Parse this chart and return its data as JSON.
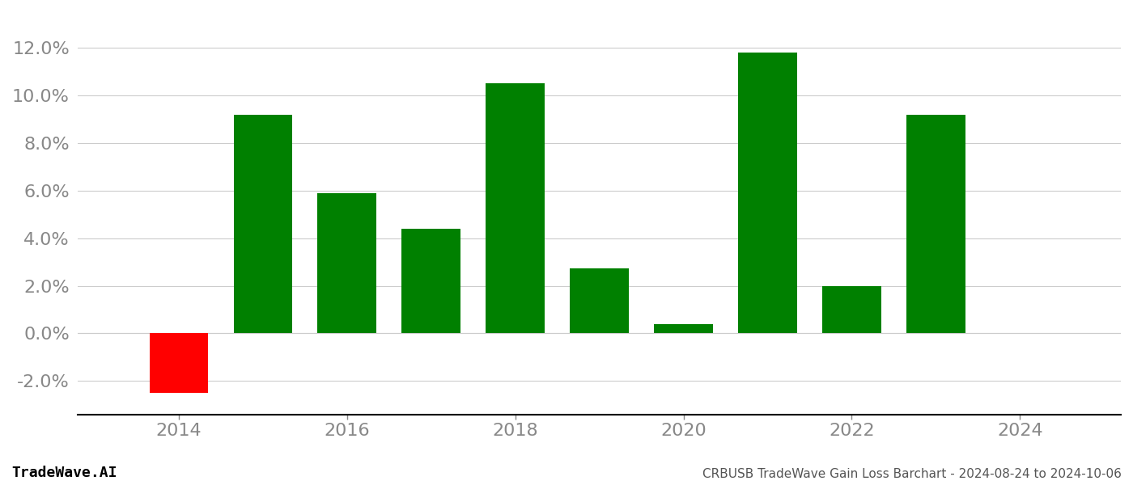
{
  "years": [
    2014,
    2015,
    2016,
    2017,
    2018,
    2019,
    2020,
    2021,
    2022,
    2023
  ],
  "values": [
    -0.025,
    0.092,
    0.059,
    0.044,
    0.105,
    0.0275,
    0.004,
    0.118,
    0.02,
    0.092
  ],
  "colors": [
    "#ff0000",
    "#008000",
    "#008000",
    "#008000",
    "#008000",
    "#008000",
    "#008000",
    "#008000",
    "#008000",
    "#008000"
  ],
  "ylim": [
    -0.034,
    0.135
  ],
  "yticks": [
    -0.02,
    0.0,
    0.02,
    0.04,
    0.06,
    0.08,
    0.1,
    0.12
  ],
  "xticks": [
    2014,
    2016,
    2018,
    2020,
    2022,
    2024
  ],
  "xlim": [
    2012.8,
    2025.2
  ],
  "footer_left": "TradeWave.AI",
  "footer_right": "CRBUSB TradeWave Gain Loss Barchart - 2024-08-24 to 2024-10-06",
  "bar_width": 0.7,
  "background_color": "#ffffff",
  "grid_color": "#cccccc",
  "tick_label_color": "#888888",
  "footer_color_left": "#000000",
  "footer_color_right": "#555555",
  "axis_color": "#000000",
  "spine_bottom_color": "#000000"
}
